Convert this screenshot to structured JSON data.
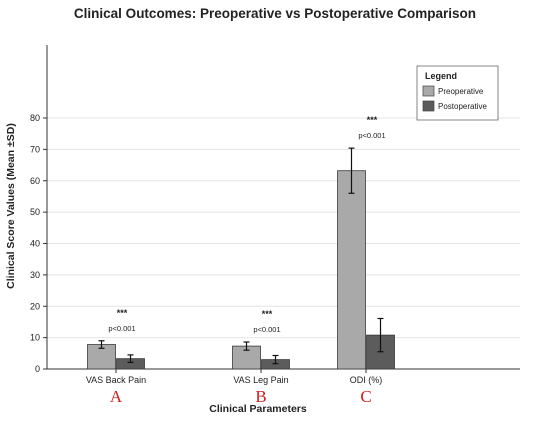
{
  "chart_data": {
    "type": "bar",
    "title": "Clinical Outcomes: Preoperative vs Postoperative Comparison",
    "xlabel": "Clinical Parameters",
    "ylabel": "Clinical Score Values (Mean ±SD)",
    "ylim": [
      0,
      80
    ],
    "yticks": [
      "0",
      "10",
      "20",
      "30",
      "40",
      "50",
      "60",
      "70",
      "80"
    ],
    "grid": "horizontal",
    "legend_title": "Legend",
    "legend_position": "top-right",
    "categories": [
      "VAS Back Pain",
      "VAS Leg Pain",
      "ODI (%)"
    ],
    "panel_letters": [
      "A",
      "B",
      "C"
    ],
    "series": [
      {
        "name": "Preoperative",
        "color": "#a9a9a9",
        "values": [
          7.8,
          7.3,
          63.2
        ],
        "sd": [
          1.2,
          1.3,
          7.2
        ]
      },
      {
        "name": "Postoperative",
        "color": "#5c5c5c",
        "values": [
          3.3,
          3.0,
          10.8
        ],
        "sd": [
          1.2,
          1.3,
          5.3
        ]
      }
    ],
    "annotations": [
      {
        "stars": "***",
        "p": "p<0.001"
      },
      {
        "stars": "***",
        "p": "p<0.001"
      },
      {
        "stars": "***",
        "p": "p<0.001"
      }
    ]
  }
}
